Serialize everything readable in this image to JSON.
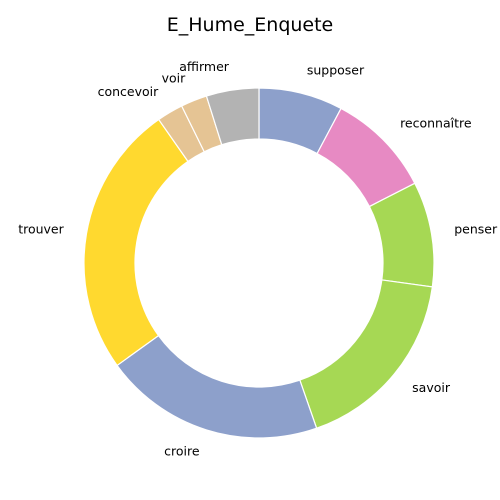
{
  "chart_data": {
    "type": "pie",
    "variant": "donut",
    "title": "E_Hume_Enquete",
    "start_angle_deg": 90,
    "direction": "clockwise",
    "slices": [
      {
        "label": "supposer",
        "value": 8,
        "color": "#8DA0CB"
      },
      {
        "label": "reconnaître",
        "value": 10,
        "color": "#E78AC3"
      },
      {
        "label": "penser",
        "value": 10,
        "color": "#A6D854"
      },
      {
        "label": "savoir",
        "value": 18,
        "color": "#A6D854"
      },
      {
        "label": "croire",
        "value": 21,
        "color": "#8DA0CB"
      },
      {
        "label": "trouver",
        "value": 26,
        "color": "#FFD92F"
      },
      {
        "label": "concevoir",
        "value": 2.5,
        "color": "#E5C494"
      },
      {
        "label": "voir",
        "value": 2.5,
        "color": "#E5C494"
      },
      {
        "label": "affirmer",
        "value": 5,
        "color": "#B3B3B3"
      }
    ]
  }
}
